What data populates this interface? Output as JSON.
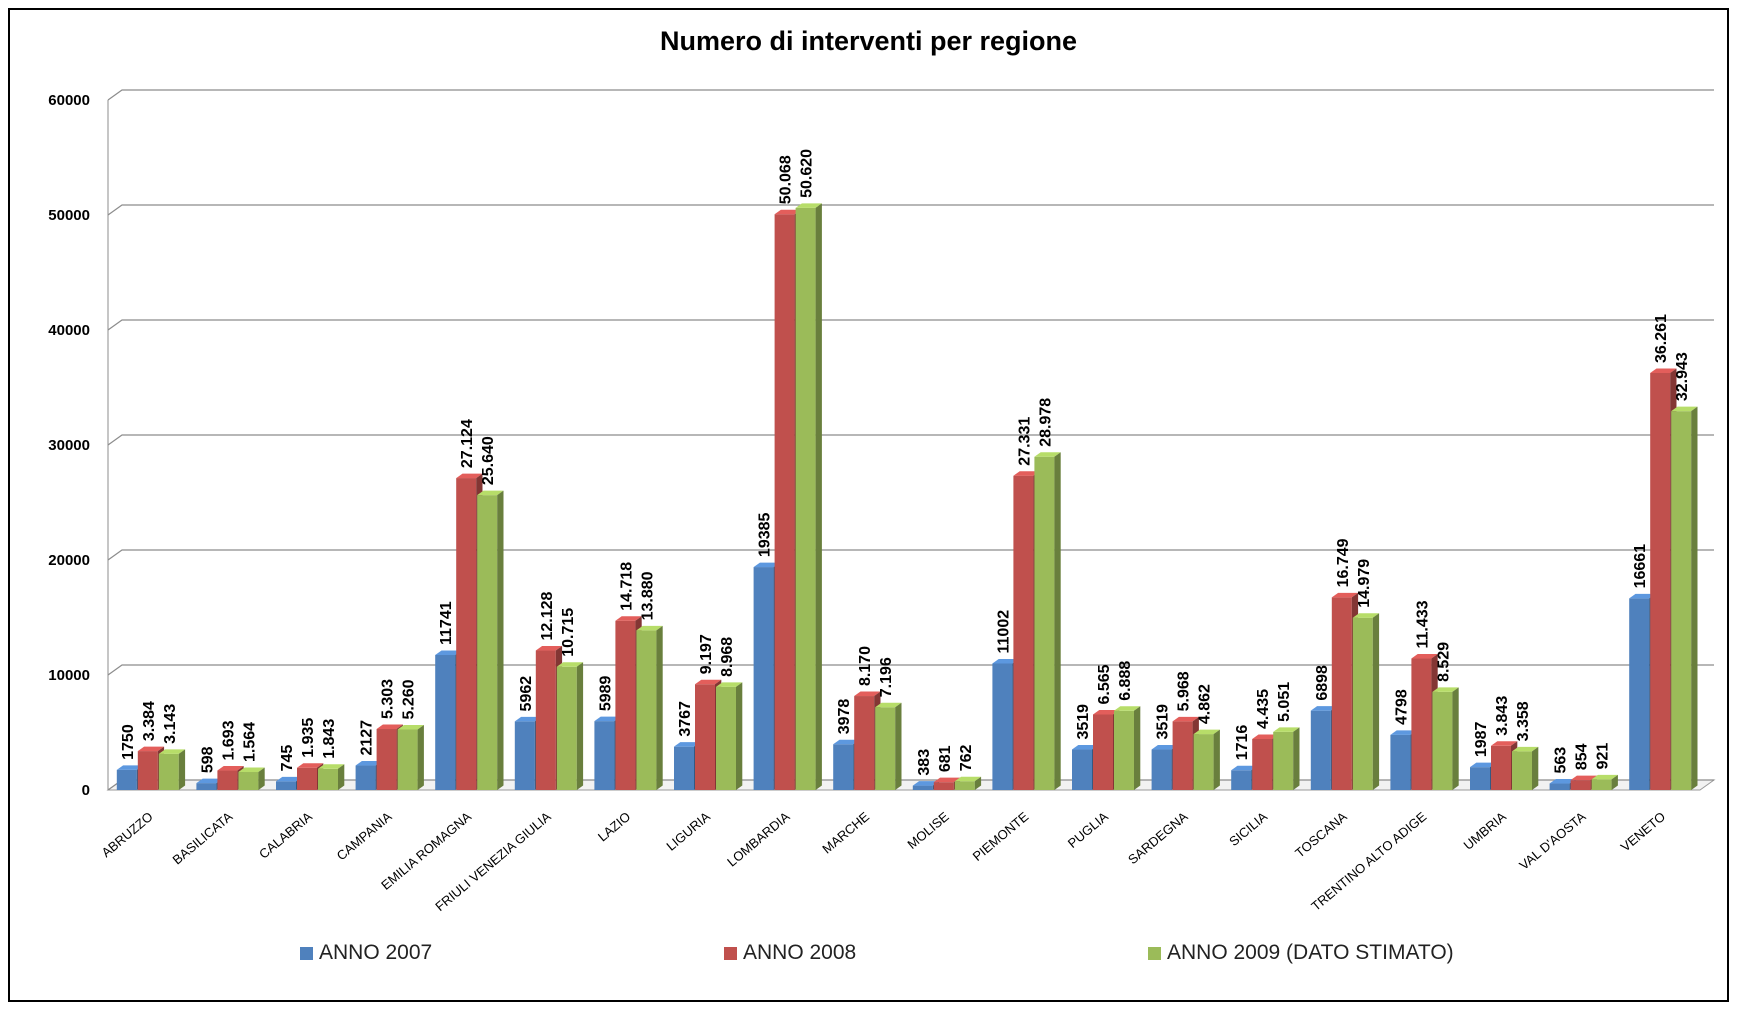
{
  "chart_data": {
    "type": "bar",
    "title": "Numero di interventi per regione",
    "xlabel": "",
    "ylabel": "",
    "ylim": [
      0,
      60000
    ],
    "yticks": [
      0,
      10000,
      20000,
      30000,
      40000,
      50000,
      60000
    ],
    "ytick_labels": [
      "0",
      "10000",
      "20000",
      "30000",
      "40000",
      "50000",
      "60000"
    ],
    "grid": true,
    "legend_position": "bottom",
    "categories": [
      "ABRUZZO",
      "BASILICATA",
      "CALABRIA",
      "CAMPANIA",
      "EMILIA ROMAGNA",
      "FRIULI VENEZIA GIULIA",
      "LAZIO",
      "LIGURIA",
      "LOMBARDIA",
      "MARCHE",
      "MOLISE",
      "PIEMONTE",
      "PUGLIA",
      "SARDEGNA",
      "SICILIA",
      "TOSCANA",
      "TRENTINO ALTO ADIGE",
      "UMBRIA",
      "VAL D'AOSTA",
      "VENETO"
    ],
    "series": [
      {
        "name": "ANNO 2007",
        "color": "#4F81BD",
        "values": [
          1750,
          598,
          745,
          2127,
          11741,
          5962,
          5989,
          3767,
          19385,
          3978,
          383,
          11002,
          3519,
          3519,
          1716,
          6898,
          4798,
          1987,
          563,
          16661
        ],
        "labels": [
          "1750",
          "598",
          "745",
          "2127",
          "11741",
          "5962",
          "5989",
          "3767",
          "19385",
          "3978",
          "383",
          "11002",
          "3519",
          "3519",
          "1716",
          "6898",
          "4798",
          "1987",
          "563",
          "16661"
        ]
      },
      {
        "name": "ANNO 2008",
        "color": "#C0504D",
        "values": [
          3384,
          1693,
          1935,
          5303,
          27124,
          12128,
          14718,
          9197,
          50068,
          8170,
          681,
          27331,
          6565,
          5968,
          4435,
          16749,
          11433,
          3843,
          854,
          36261
        ],
        "labels": [
          "3.384",
          "1.693",
          "1.935",
          "5.303",
          "27.124",
          "12.128",
          "14.718",
          "9.197",
          "50.068",
          "8.170",
          "681",
          "27.331",
          "6.565",
          "5.968",
          "4.435",
          "16.749",
          "11.433",
          "3.843",
          "854",
          "36.261"
        ]
      },
      {
        "name": "ANNO 2009 (DATO STIMATO)",
        "color": "#9BBB59",
        "values": [
          3143,
          1564,
          1843,
          5260,
          25640,
          10715,
          13880,
          8968,
          50620,
          7196,
          762,
          28978,
          6888,
          4862,
          5051,
          14979,
          8529,
          3358,
          921,
          32943
        ],
        "labels": [
          "3.143",
          "1.564",
          "1.843",
          "5.260",
          "25.640",
          "10.715",
          "13.880",
          "8.968",
          "50.620",
          "7.196",
          "762",
          "28.978",
          "6.888",
          "4.862",
          "5.051",
          "14.979",
          "8.529",
          "3.358",
          "921",
          "32.943"
        ]
      }
    ]
  }
}
